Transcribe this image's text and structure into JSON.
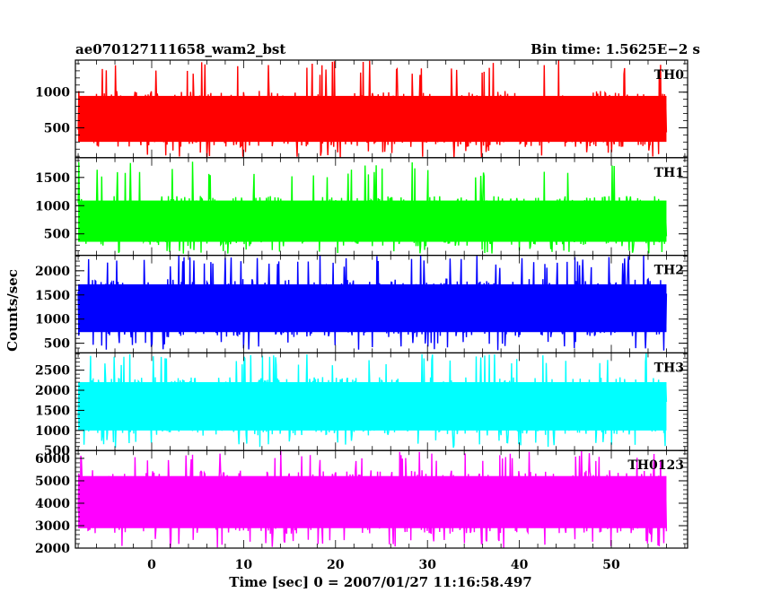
{
  "chart_data": {
    "type": "line",
    "title": "ae070127111658_wam2_bst",
    "subtitle": "Bin time: 1.5625E−2 s",
    "xlabel": "Time [sec] 0 = 2007/01/27 11:16:58.497",
    "ylabel": "Counts/sec",
    "xlim": [
      -8.3,
      58.3
    ],
    "x_data_range": [
      -8.0,
      56.0
    ],
    "x_ticks": [
      0,
      10,
      20,
      30,
      40,
      50
    ],
    "x_tick_labels": [
      "0",
      "10",
      "20",
      "30",
      "40",
      "50"
    ],
    "grid": false,
    "panels": [
      {
        "name": "TH0",
        "color": "#ff0000",
        "ylim": [
          80,
          1450
        ],
        "y_ticks": [
          500,
          1000
        ],
        "y_tick_labels": [
          "500",
          "1000"
        ],
        "typical_low": 250,
        "typical_high": 1000,
        "min": 80,
        "max": 1450
      },
      {
        "name": "TH1",
        "color": "#00ff00",
        "ylim": [
          120,
          1850
        ],
        "y_ticks": [
          500,
          1000,
          1500
        ],
        "y_tick_labels": [
          "500",
          "1000",
          "1500"
        ],
        "typical_low": 300,
        "typical_high": 1150,
        "min": 150,
        "max": 1800
      },
      {
        "name": "TH2",
        "color": "#0000ff",
        "ylim": [
          300,
          2320
        ],
        "y_ticks": [
          500,
          1000,
          1500,
          2000
        ],
        "y_tick_labels": [
          "500",
          "1000",
          "1500",
          "2000"
        ],
        "typical_low": 650,
        "typical_high": 1800,
        "min": 350,
        "max": 2320
      },
      {
        "name": "TH3",
        "color": "#00ffff",
        "ylim": [
          500,
          2930
        ],
        "y_ticks": [
          500,
          1000,
          1500,
          2000,
          2500
        ],
        "y_tick_labels": [
          "500",
          "1000",
          "1500",
          "2000",
          "2500"
        ],
        "typical_low": 900,
        "typical_high": 2300,
        "min": 550,
        "max": 2930
      },
      {
        "name": "TH0123",
        "color": "#ff00ff",
        "ylim": [
          2000,
          6350
        ],
        "y_ticks": [
          2000,
          3000,
          4000,
          5000,
          6000
        ],
        "y_tick_labels": [
          "2000",
          "3000",
          "4000",
          "5000",
          "6000"
        ],
        "typical_low": 2700,
        "typical_high": 5400,
        "min": 2000,
        "max": 6350
      }
    ]
  }
}
